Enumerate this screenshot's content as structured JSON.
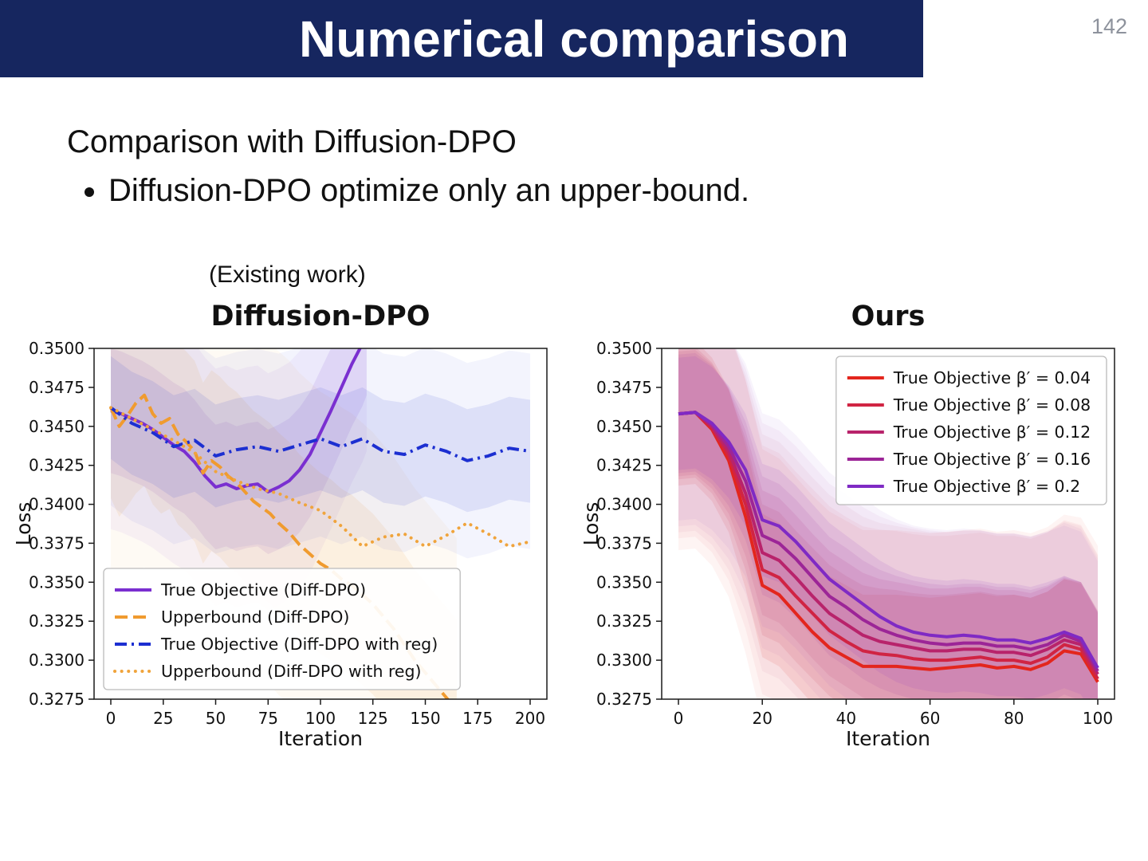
{
  "slide": {
    "title": "Numerical comparison",
    "page_number": "142",
    "header_color": "#16265f",
    "body_line1": "Comparison with Diffusion-DPO",
    "bullets": [
      "Diffusion-DPO optimize only an upper-bound."
    ],
    "existing_work_label": "(Existing work)"
  },
  "chart_data": [
    {
      "id": "diffdpo",
      "type": "line",
      "title": "Diffusion-DPO",
      "xlabel": "Iteration",
      "ylabel": "Loss",
      "xlim": [
        -8,
        208
      ],
      "ylim": [
        0.3275,
        0.35
      ],
      "xticks": [
        0,
        25,
        50,
        75,
        100,
        125,
        150,
        175,
        200
      ],
      "yticks": [
        0.3275,
        0.33,
        0.3325,
        0.335,
        0.3375,
        0.34,
        0.3425,
        0.345,
        0.3475,
        0.35
      ],
      "legend_position": "lower-left",
      "series": [
        {
          "name": "True Objective (Diff-DPO)",
          "color": "#7a2fd0",
          "style": "solid",
          "band": 0.004,
          "x": [
            0,
            5,
            10,
            15,
            20,
            25,
            30,
            35,
            40,
            45,
            50,
            55,
            60,
            65,
            70,
            75,
            80,
            85,
            90,
            95,
            100,
            105,
            110,
            115,
            120,
            122
          ],
          "y": [
            0.346,
            0.3458,
            0.3455,
            0.3452,
            0.3448,
            0.3443,
            0.3438,
            0.3434,
            0.3427,
            0.3418,
            0.3411,
            0.3413,
            0.341,
            0.3412,
            0.3413,
            0.3408,
            0.3411,
            0.3415,
            0.3422,
            0.3432,
            0.3446,
            0.346,
            0.3475,
            0.349,
            0.3503,
            0.351
          ]
        },
        {
          "name": "Upperbound (Diff-DPO)",
          "color": "#f09b2f",
          "style": "dashed",
          "band": 0.0058,
          "x": [
            0,
            4,
            8,
            12,
            16,
            20,
            24,
            28,
            32,
            36,
            40,
            44,
            48,
            52,
            56,
            60,
            64,
            68,
            72,
            76,
            80,
            85,
            90,
            95,
            100,
            105,
            110,
            115,
            120,
            125,
            130,
            135,
            140,
            145,
            150,
            155,
            160,
            165
          ],
          "y": [
            0.3462,
            0.345,
            0.3457,
            0.3465,
            0.347,
            0.3458,
            0.3452,
            0.3455,
            0.3445,
            0.344,
            0.3434,
            0.342,
            0.3428,
            0.3424,
            0.3418,
            0.3414,
            0.3408,
            0.3402,
            0.3398,
            0.3394,
            0.3388,
            0.3382,
            0.3374,
            0.3368,
            0.3362,
            0.3358,
            0.3352,
            0.3348,
            0.3342,
            0.3336,
            0.3328,
            0.332,
            0.331,
            0.33,
            0.3292,
            0.3284,
            0.3276,
            0.3268
          ]
        },
        {
          "name": "True Objective (Diff-DPO with reg)",
          "color": "#1c2fd1",
          "style": "dashdot",
          "band": 0.0033,
          "x": [
            0,
            10,
            20,
            30,
            40,
            50,
            60,
            70,
            80,
            90,
            100,
            110,
            120,
            130,
            140,
            150,
            160,
            170,
            180,
            190,
            200
          ],
          "y": [
            0.3462,
            0.3452,
            0.3446,
            0.3437,
            0.3441,
            0.3431,
            0.3435,
            0.3437,
            0.3434,
            0.3438,
            0.3442,
            0.3437,
            0.3442,
            0.3434,
            0.3432,
            0.3438,
            0.3434,
            0.3428,
            0.3431,
            0.3436,
            0.3434
          ]
        },
        {
          "name": "Upperbound (Diff-DPO with reg)",
          "color": "#f0a43c",
          "style": "dotted",
          "band": 0,
          "x": [
            0,
            10,
            20,
            30,
            40,
            50,
            60,
            70,
            80,
            90,
            100,
            110,
            120,
            130,
            140,
            150,
            160,
            170,
            180,
            190,
            200
          ],
          "y": [
            0.3462,
            0.3455,
            0.3448,
            0.3441,
            0.3433,
            0.3421,
            0.3415,
            0.341,
            0.3407,
            0.3401,
            0.3396,
            0.3386,
            0.3373,
            0.3379,
            0.3381,
            0.3373,
            0.338,
            0.3388,
            0.3381,
            0.3373,
            0.3376
          ]
        }
      ]
    },
    {
      "id": "ours",
      "type": "line",
      "title": "Ours",
      "xlabel": "Iteration",
      "ylabel": "Loss",
      "xlim": [
        -4,
        104
      ],
      "ylim": [
        0.3275,
        0.35
      ],
      "xticks": [
        0,
        20,
        40,
        60,
        80,
        100
      ],
      "yticks": [
        0.3275,
        0.33,
        0.3325,
        0.335,
        0.3375,
        0.34,
        0.3425,
        0.345,
        0.3475,
        0.35
      ],
      "legend_position": "upper-right",
      "x": [
        0,
        4,
        8,
        12,
        16,
        20,
        24,
        28,
        32,
        36,
        40,
        44,
        48,
        52,
        56,
        60,
        64,
        68,
        72,
        76,
        80,
        84,
        88,
        92,
        96,
        100
      ],
      "series": [
        {
          "name": "True Objective β′ = 0.04",
          "color": "#e3261d",
          "style": "solid",
          "band": 0.0046,
          "y": [
            0.3458,
            0.3459,
            0.3448,
            0.3428,
            0.3392,
            0.3348,
            0.3342,
            0.333,
            0.3318,
            0.3308,
            0.3302,
            0.3296,
            0.3296,
            0.3296,
            0.3295,
            0.3294,
            0.3295,
            0.3296,
            0.3297,
            0.3295,
            0.3296,
            0.3294,
            0.3298,
            0.3306,
            0.3304,
            0.3286
          ]
        },
        {
          "name": "True Objective β′ = 0.08",
          "color": "#d02443",
          "style": "solid",
          "band": 0.0042,
          "y": [
            0.3458,
            0.3459,
            0.3449,
            0.3431,
            0.34,
            0.3358,
            0.3353,
            0.3341,
            0.333,
            0.3319,
            0.3312,
            0.3306,
            0.3304,
            0.3303,
            0.3301,
            0.33,
            0.33,
            0.3301,
            0.3302,
            0.33,
            0.33,
            0.3298,
            0.3302,
            0.331,
            0.3307,
            0.3288
          ]
        },
        {
          "name": "True Objective β′ = 0.12",
          "color": "#b8236b",
          "style": "solid",
          "band": 0.004,
          "y": [
            0.3458,
            0.3459,
            0.345,
            0.3434,
            0.3407,
            0.3369,
            0.3364,
            0.3353,
            0.3341,
            0.333,
            0.3323,
            0.3316,
            0.3312,
            0.331,
            0.3308,
            0.3306,
            0.3306,
            0.3307,
            0.3307,
            0.3305,
            0.3305,
            0.3303,
            0.3307,
            0.3313,
            0.331,
            0.3291
          ]
        },
        {
          "name": "True Objective β′ = 0.16",
          "color": "#9c2597",
          "style": "solid",
          "band": 0.0038,
          "y": [
            0.3458,
            0.3459,
            0.3451,
            0.3437,
            0.3415,
            0.338,
            0.3375,
            0.3365,
            0.3353,
            0.3341,
            0.3334,
            0.3326,
            0.332,
            0.3316,
            0.3313,
            0.3311,
            0.331,
            0.3311,
            0.3311,
            0.3309,
            0.3309,
            0.3307,
            0.331,
            0.3316,
            0.3312,
            0.3293
          ]
        },
        {
          "name": "True Objective β′ = 0.2",
          "color": "#7f2ac4",
          "style": "solid",
          "band": 0.0036,
          "y": [
            0.3458,
            0.3459,
            0.3452,
            0.344,
            0.3422,
            0.339,
            0.3386,
            0.3376,
            0.3364,
            0.3352,
            0.3344,
            0.3336,
            0.3328,
            0.3322,
            0.3318,
            0.3316,
            0.3315,
            0.3316,
            0.3315,
            0.3313,
            0.3313,
            0.3311,
            0.3314,
            0.3318,
            0.3314,
            0.3295
          ]
        }
      ]
    }
  ]
}
